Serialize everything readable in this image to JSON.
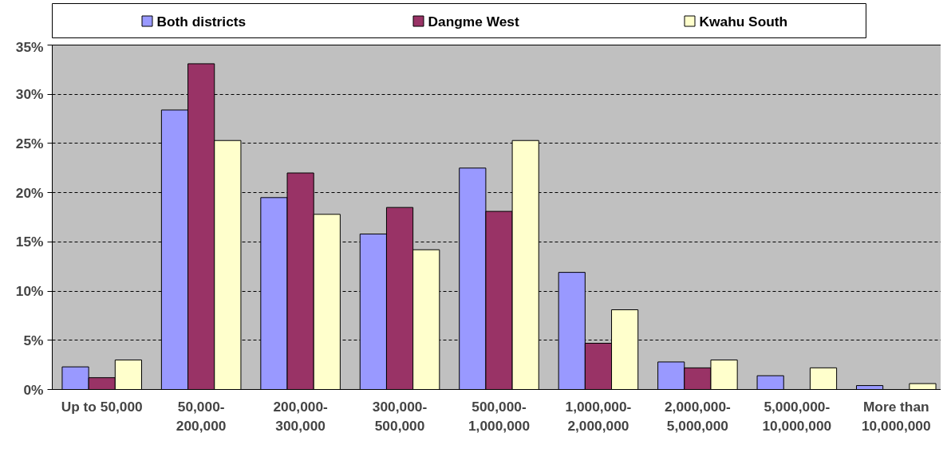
{
  "chart_data": {
    "type": "bar",
    "categories": [
      "Up to 50,000",
      "50,000-\n200,000",
      "200,000-\n300,000",
      "300,000-\n500,000",
      "500,000-\n1,000,000",
      "1,000,000-\n2,000,000",
      "2,000,000-\n5,000,000",
      "5,000,000-\n10,000,000",
      "More than\n10,000,000"
    ],
    "series": [
      {
        "name": "Both districts",
        "color": "#9999ff",
        "values": [
          2.3,
          28.4,
          19.5,
          15.8,
          22.5,
          11.9,
          2.8,
          1.4,
          0.4
        ]
      },
      {
        "name": "Dangme West",
        "color": "#993366",
        "values": [
          1.2,
          33.1,
          22.0,
          18.5,
          18.1,
          4.7,
          2.2,
          null,
          null
        ]
      },
      {
        "name": "Kwahu South",
        "color": "#ffffcc",
        "values": [
          3.0,
          25.3,
          17.8,
          14.2,
          25.3,
          8.1,
          3.0,
          2.2,
          0.6
        ]
      }
    ],
    "ylim": [
      0,
      35
    ],
    "yticks": [
      {
        "value": 0,
        "label": "0%"
      },
      {
        "value": 5,
        "label": "5%"
      },
      {
        "value": 10,
        "label": "10%"
      },
      {
        "value": 15,
        "label": "15%"
      },
      {
        "value": 20,
        "label": "20%"
      },
      {
        "value": 25,
        "label": "25%"
      },
      {
        "value": 30,
        "label": "30%"
      },
      {
        "value": 35,
        "label": "35%"
      }
    ],
    "grid": "y",
    "legend": "top"
  }
}
